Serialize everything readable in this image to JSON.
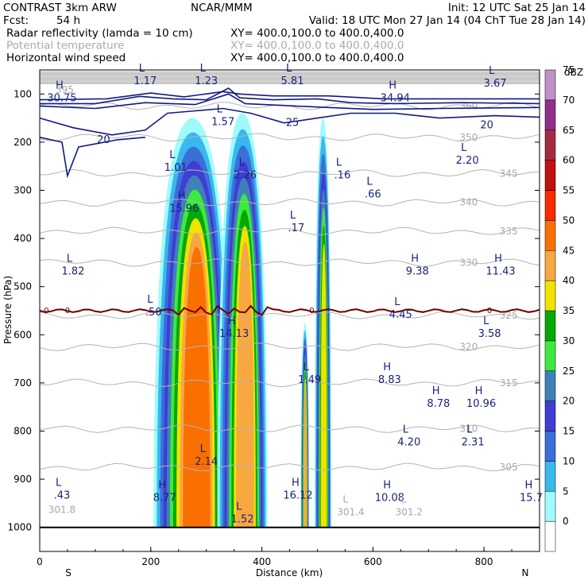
{
  "header": {
    "model": "CONTRAST  3km ARW",
    "center": "NCAR/MMM",
    "init": "Init: 12 UTC Sat 25 Jan 14",
    "fcst_label": "Fcst:",
    "fcst_value": "54 h",
    "valid": "Valid: 18 UTC Mon 27 Jan 14 (04 ChT Tue 28 Jan 14)",
    "fields": [
      {
        "name": "Radar reflectivity (lamda = 10 cm)",
        "xy": "XY= 400.0,100.0 to 400.0,400.0",
        "muted": false
      },
      {
        "name": "Potential temperature",
        "xy": "XY= 400.0,100.0 to 400.0,400.0",
        "muted": true
      },
      {
        "name": "Horizontal wind speed",
        "xy": "XY= 400.0,100.0 to 400.0,400.0",
        "muted": false
      }
    ]
  },
  "colors": {
    "theta": "#b4b4b4",
    "wind": "#101a80",
    "freezing": "#6b0000",
    "terrain": "#000000"
  },
  "chart_data": {
    "type": "cross-section",
    "xlabel": "Distance (km)",
    "ylabel": "Pressure (hPa)",
    "xlim": [
      0,
      900
    ],
    "ylim": [
      1050,
      50
    ],
    "x_ticks": [
      0,
      200,
      400,
      600,
      800
    ],
    "x_tick_labels": [
      "0",
      "200",
      "400",
      "600",
      "800"
    ],
    "y_ticks": [
      100,
      200,
      300,
      400,
      500,
      600,
      700,
      800,
      900,
      1000
    ],
    "y_tick_labels": [
      "100",
      "200",
      "300",
      "400",
      "500",
      "600",
      "700",
      "800",
      "900",
      "1000"
    ],
    "end_labels": {
      "left": "S",
      "right": "N"
    },
    "colorbar": {
      "unit": "dBZ",
      "levels": [
        0,
        5,
        10,
        15,
        20,
        25,
        30,
        35,
        40,
        45,
        50,
        55,
        60,
        65,
        70,
        75
      ],
      "colors": [
        "#ffffff",
        "#9ffbfb",
        "#38b8ef",
        "#3a6fd8",
        "#3f3dd4",
        "#3f80b8",
        "#3ee93e",
        "#05a805",
        "#f2e200",
        "#f8a840",
        "#fa7000",
        "#f82a00",
        "#c01010",
        "#a42a40",
        "#90308a",
        "#c090c8"
      ]
    },
    "reflectivity_cells": [
      {
        "x0": 205,
        "x1": 345,
        "p_top": 150,
        "p_bot": 1000,
        "max_dbz": 50
      },
      {
        "x0": 320,
        "x1": 410,
        "p_top": 140,
        "p_bot": 1000,
        "max_dbz": 45
      },
      {
        "x0": 470,
        "x1": 485,
        "p_top": 575,
        "p_bot": 1000,
        "max_dbz": 45
      },
      {
        "x0": 495,
        "x1": 525,
        "p_top": 150,
        "p_bot": 1000,
        "max_dbz": 40
      }
    ],
    "freezing_level_hPa": 550,
    "freezing_label": "0",
    "surface_hPa": 1000,
    "theta_contours": [
      {
        "value": "350",
        "p": 190
      },
      {
        "value": "345",
        "p": 265
      },
      {
        "value": "340",
        "p": 325
      },
      {
        "value": "335",
        "p": 385
      },
      {
        "value": "330",
        "p": 450
      },
      {
        "value": "325",
        "p": 560
      },
      {
        "value": "320",
        "p": 625
      },
      {
        "value": "315",
        "p": 700
      },
      {
        "value": "310",
        "p": 795
      },
      {
        "value": "305",
        "p": 875
      },
      {
        "value": "360",
        "p": 125
      }
    ],
    "wind_contours": [
      {
        "value": "20",
        "p": 195,
        "x_left_label": 115
      },
      {
        "value": "25",
        "p": 160,
        "x_left_label": 455
      },
      {
        "value": "20",
        "p": 165,
        "x_left_label": 805
      }
    ],
    "wind_extrema": [
      {
        "type": "L",
        "value": "1.17",
        "x": 190,
        "p": 65
      },
      {
        "type": "L",
        "value": "1.23",
        "x": 300,
        "p": 65
      },
      {
        "type": "L",
        "value": "5.81",
        "x": 455,
        "p": 65
      },
      {
        "type": "L",
        "value": "3.67",
        "x": 820,
        "p": 70
      },
      {
        "type": "H",
        "value": "30.75",
        "x": 40,
        "p": 100
      },
      {
        "type": "H",
        "value": "34.94",
        "x": 640,
        "p": 100
      },
      {
        "type": "L",
        "value": "1.57",
        "x": 330,
        "p": 150
      },
      {
        "type": "L",
        "value": "1.01",
        "x": 245,
        "p": 245
      },
      {
        "type": "L",
        "value": "2.26",
        "x": 370,
        "p": 260
      },
      {
        "type": "L",
        "value": ".16",
        "x": 545,
        "p": 260
      },
      {
        "type": "L",
        "value": "2.20",
        "x": 770,
        "p": 230
      },
      {
        "type": "L",
        "value": ".66",
        "x": 600,
        "p": 300
      },
      {
        "type": "H",
        "value": "15.96",
        "x": 260,
        "p": 330
      },
      {
        "type": "L",
        "value": ".17",
        "x": 462,
        "p": 370
      },
      {
        "type": "L",
        "value": "1.82",
        "x": 60,
        "p": 460
      },
      {
        "type": "H",
        "value": "9.38",
        "x": 680,
        "p": 460
      },
      {
        "type": "H",
        "value": "11.43",
        "x": 830,
        "p": 460
      },
      {
        "type": "L",
        "value": ".50",
        "x": 205,
        "p": 545
      },
      {
        "type": "L",
        "value": "4.45",
        "x": 650,
        "p": 550
      },
      {
        "type": "H",
        "value": "14.13",
        "x": 350,
        "p": 590
      },
      {
        "type": "L",
        "value": "3.58",
        "x": 810,
        "p": 590
      },
      {
        "type": "H",
        "value": "8.83",
        "x": 630,
        "p": 685
      },
      {
        "type": "L",
        "value": "1.49",
        "x": 486,
        "p": 685
      },
      {
        "type": "H",
        "value": "8.78",
        "x": 718,
        "p": 735
      },
      {
        "type": "H",
        "value": "10.96",
        "x": 795,
        "p": 735
      },
      {
        "type": "L",
        "value": "4.20",
        "x": 665,
        "p": 815
      },
      {
        "type": "L",
        "value": "2.31",
        "x": 780,
        "p": 815
      },
      {
        "type": "L",
        "value": "2.14",
        "x": 300,
        "p": 855
      },
      {
        "type": "L",
        "value": ".43",
        "x": 40,
        "p": 925
      },
      {
        "type": "H",
        "value": "8.77",
        "x": 225,
        "p": 930
      },
      {
        "type": "H",
        "value": "16.12",
        "x": 465,
        "p": 925
      },
      {
        "type": "H",
        "value": "10.08",
        "x": 630,
        "p": 930
      },
      {
        "type": "H",
        "value": "15.7",
        "x": 885,
        "p": 930
      },
      {
        "type": "L",
        "value": "1.52",
        "x": 365,
        "p": 975
      }
    ],
    "theta_extrema": [
      {
        "type": "L",
        "value": "301.4",
        "x": 560,
        "p": 960
      },
      {
        "type": "L",
        "value": "301.2",
        "x": 665,
        "p": 960
      },
      {
        "type": "",
        "value": "301.8",
        "x": 40,
        "p": 955
      },
      {
        "type": "",
        "value": "395",
        "x": 45,
        "p": 83
      }
    ]
  }
}
